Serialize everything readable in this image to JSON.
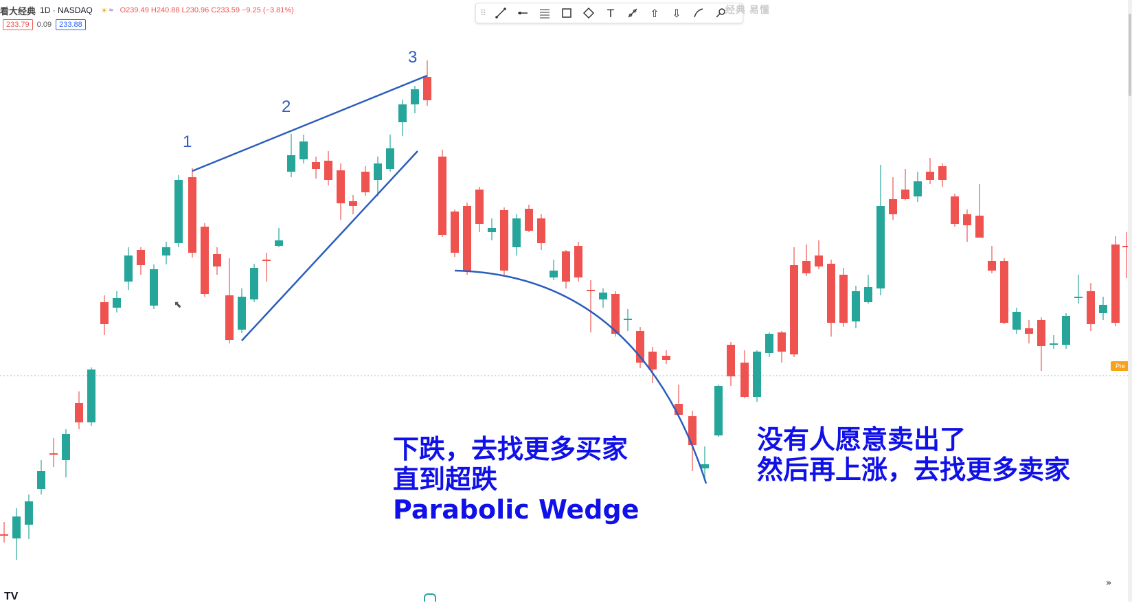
{
  "header": {
    "watermark": "看大经典",
    "symbol": "1D · NASDAQ",
    "ohlc": "O239.49 H240.88 L230.96 C233.59 −9.25 (−3.81%)",
    "sell_price": "233.79",
    "spread": "0.09",
    "buy_price": "233.88"
  },
  "watermark_right": "经典 易懂",
  "toolbar": {
    "tools": [
      "trend-line-icon",
      "horizontal-ray-icon",
      "fib-retracement-icon",
      "rectangle-icon",
      "path-icon",
      "text-icon",
      "measure-icon",
      "arrow-up-icon",
      "arrow-down-icon",
      "brush-icon",
      "magnifier-icon"
    ]
  },
  "wave_labels": [
    "1",
    "2",
    "3"
  ],
  "annotations": {
    "left_line1": "下跌，去找更多买家",
    "left_line2": "直到超跌",
    "left_line3": "Parabolic Wedge",
    "right_line1": "没有人愿意卖出了",
    "right_line2": "然后再上涨，去找更多卖家"
  },
  "price_badge": "Pre",
  "colors": {
    "up": "#26a69a",
    "down": "#ef5350",
    "trendline": "#2a5dbd",
    "annotation": "#1010e8"
  },
  "candles_note": "daily OHLC candles, generic price units"
}
